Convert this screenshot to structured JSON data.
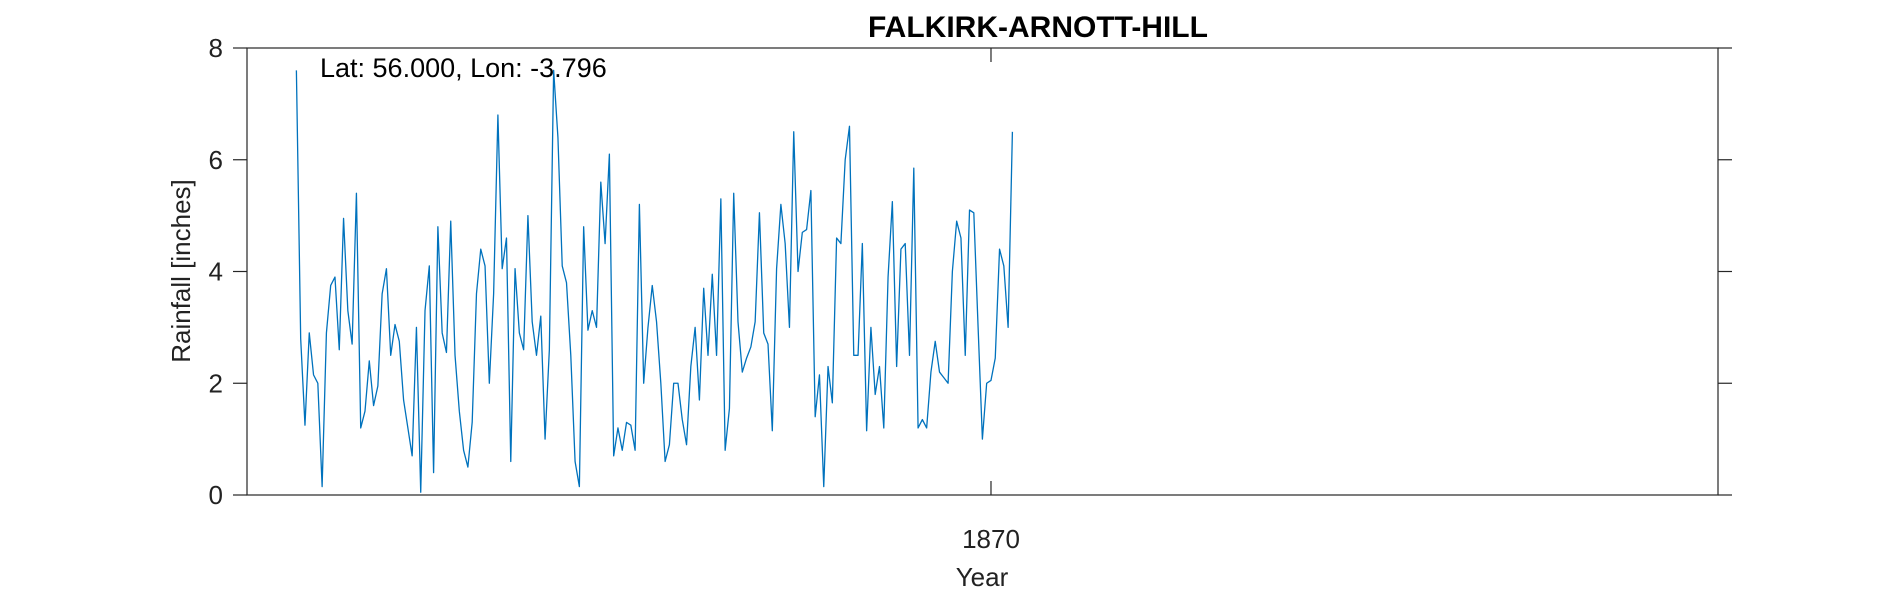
{
  "chart_data": {
    "type": "line",
    "title": "FALKIRK-ARNOTT-HILL",
    "xlabel": "Year",
    "ylabel": "Rainfall [inches]",
    "annotation": "Lat: 56.000, Lon: -3.796",
    "ylim": [
      0,
      8
    ],
    "yticks": [
      0,
      2,
      4,
      6,
      8
    ],
    "xticks": [
      {
        "value": 1870,
        "label": "1870"
      }
    ],
    "xlim": [
      1855.54,
      1884.13
    ],
    "x_start": 1856.5,
    "x_step": 0.08333,
    "grid": false,
    "line_color": "#0072BD",
    "series": [
      {
        "values": [
          7.6,
          2.8,
          1.25,
          2.9,
          2.15,
          2.0,
          0.15,
          2.9,
          3.75,
          3.9,
          2.6,
          4.95,
          3.3,
          2.7,
          5.4,
          1.2,
          1.5,
          2.4,
          1.6,
          1.95,
          3.6,
          4.05,
          2.5,
          3.05,
          2.75,
          1.7,
          1.2,
          0.7,
          3.0,
          0.05,
          3.3,
          4.1,
          0.4,
          4.8,
          2.9,
          2.55,
          4.9,
          2.5,
          1.5,
          0.8,
          0.5,
          1.3,
          3.6,
          4.4,
          4.1,
          2.0,
          3.6,
          6.8,
          4.05,
          4.6,
          0.6,
          4.05,
          2.9,
          2.6,
          5.0,
          3.1,
          2.5,
          3.2,
          1.0,
          2.6,
          7.6,
          6.4,
          4.1,
          3.8,
          2.5,
          0.6,
          0.15,
          4.8,
          2.95,
          3.3,
          3.0,
          5.6,
          4.5,
          6.1,
          0.7,
          1.2,
          0.8,
          1.3,
          1.25,
          0.8,
          5.2,
          2.0,
          3.0,
          3.75,
          3.1,
          2.0,
          0.6,
          0.9,
          2.0,
          2.0,
          1.35,
          0.9,
          2.3,
          3.0,
          1.7,
          3.7,
          2.5,
          3.95,
          2.5,
          5.3,
          0.8,
          1.55,
          5.4,
          3.1,
          2.2,
          2.45,
          2.65,
          3.1,
          5.05,
          2.9,
          2.7,
          1.15,
          4.05,
          5.2,
          4.5,
          3.0,
          6.5,
          4.0,
          4.7,
          4.75,
          5.45,
          1.4,
          2.15,
          0.15,
          2.3,
          1.65,
          4.6,
          4.5,
          6.0,
          6.6,
          2.5,
          2.5,
          4.5,
          1.15,
          3.0,
          1.8,
          2.3,
          1.2,
          3.9,
          5.25,
          2.3,
          4.4,
          4.5,
          2.5,
          5.85,
          1.2,
          1.35,
          1.2,
          2.2,
          2.75,
          2.2,
          2.1,
          2.0,
          4.0,
          4.9,
          4.6,
          2.5,
          5.1,
          5.05,
          3.0,
          1.0,
          2.0,
          2.05,
          2.45,
          4.4,
          4.1,
          3.0,
          6.5
        ]
      }
    ]
  }
}
